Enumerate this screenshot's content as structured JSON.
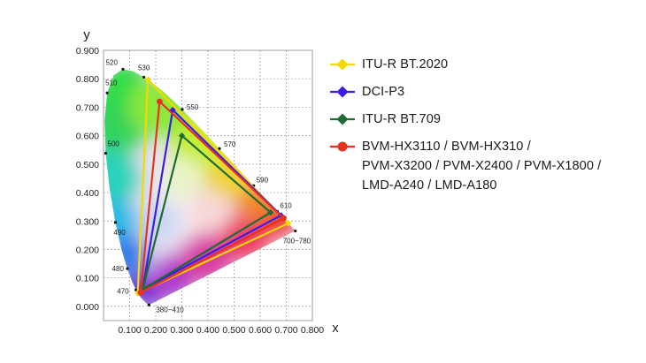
{
  "chart_data": {
    "type": "scatter",
    "subtype": "cie-1931-chromaticity-diagram",
    "xlabel": "x",
    "ylabel": "y",
    "xlim": [
      0.0,
      0.8
    ],
    "ylim": [
      -0.05,
      0.9
    ],
    "x_ticks": [
      "0.100",
      "0.200",
      "0.300",
      "0.400",
      "0.500",
      "0.600",
      "0.700",
      "0.800"
    ],
    "y_ticks": [
      "0.000",
      "0.100",
      "0.200",
      "0.300",
      "0.400",
      "0.500",
      "0.600",
      "0.700",
      "0.800",
      "0.900"
    ],
    "grid": true,
    "legend_position": "right",
    "spectral_locus": [
      {
        "label": "380~410",
        "x": 0.1741,
        "y": 0.005
      },
      {
        "label": "470",
        "x": 0.1241,
        "y": 0.0578
      },
      {
        "label": "480",
        "x": 0.0913,
        "y": 0.1327
      },
      {
        "label": "490",
        "x": 0.0454,
        "y": 0.295
      },
      {
        "label": "500",
        "x": 0.0082,
        "y": 0.5384
      },
      {
        "label": "510",
        "x": 0.0139,
        "y": 0.7502
      },
      {
        "label": "520",
        "x": 0.0743,
        "y": 0.8338
      },
      {
        "label": "530",
        "x": 0.1547,
        "y": 0.8059
      },
      {
        "label": "550",
        "x": 0.3016,
        "y": 0.6923
      },
      {
        "label": "570",
        "x": 0.4441,
        "y": 0.5547
      },
      {
        "label": "590",
        "x": 0.5752,
        "y": 0.4242
      },
      {
        "label": "610",
        "x": 0.6658,
        "y": 0.334
      },
      {
        "label": "700~780",
        "x": 0.7347,
        "y": 0.2653
      }
    ],
    "series": [
      {
        "name": "ITU-R BT.2020",
        "color": "#f5d800",
        "marker": "diamond",
        "points": [
          {
            "x": 0.708,
            "y": 0.292
          },
          {
            "x": 0.17,
            "y": 0.797
          },
          {
            "x": 0.131,
            "y": 0.046
          }
        ]
      },
      {
        "name": "DCI-P3",
        "color": "#3a1ee6",
        "marker": "diamond",
        "points": [
          {
            "x": 0.68,
            "y": 0.32
          },
          {
            "x": 0.265,
            "y": 0.69
          },
          {
            "x": 0.15,
            "y": 0.06
          }
        ]
      },
      {
        "name": "ITU-R BT.709",
        "color": "#1f6b33",
        "marker": "diamond",
        "points": [
          {
            "x": 0.64,
            "y": 0.33
          },
          {
            "x": 0.3,
            "y": 0.6
          },
          {
            "x": 0.15,
            "y": 0.06
          }
        ]
      },
      {
        "name": "BVM-HX3110 / BVM-HX310 / PVM-X3200 / PVM-X2400 / PVM-X1800 / LMD-A240 / LMD-A180",
        "color": "#e6321e",
        "marker": "circle",
        "points": [
          {
            "x": 0.69,
            "y": 0.31
          },
          {
            "x": 0.215,
            "y": 0.72
          },
          {
            "x": 0.142,
            "y": 0.048
          }
        ]
      }
    ]
  },
  "legend": {
    "items": [
      {
        "lines": [
          "ITU-R BT.2020"
        ],
        "color": "#f5d800",
        "marker": "diamond"
      },
      {
        "lines": [
          "DCI-P3"
        ],
        "color": "#3a1ee6",
        "marker": "diamond"
      },
      {
        "lines": [
          "ITU-R BT.709"
        ],
        "color": "#1f6b33",
        "marker": "diamond"
      },
      {
        "lines": [
          "BVM-HX3110 / BVM-HX310 /",
          "PVM-X3200 / PVM-X2400 / PVM-X1800 /",
          "LMD-A240 / LMD-A180"
        ],
        "color": "#e6321e",
        "marker": "circle"
      }
    ]
  }
}
